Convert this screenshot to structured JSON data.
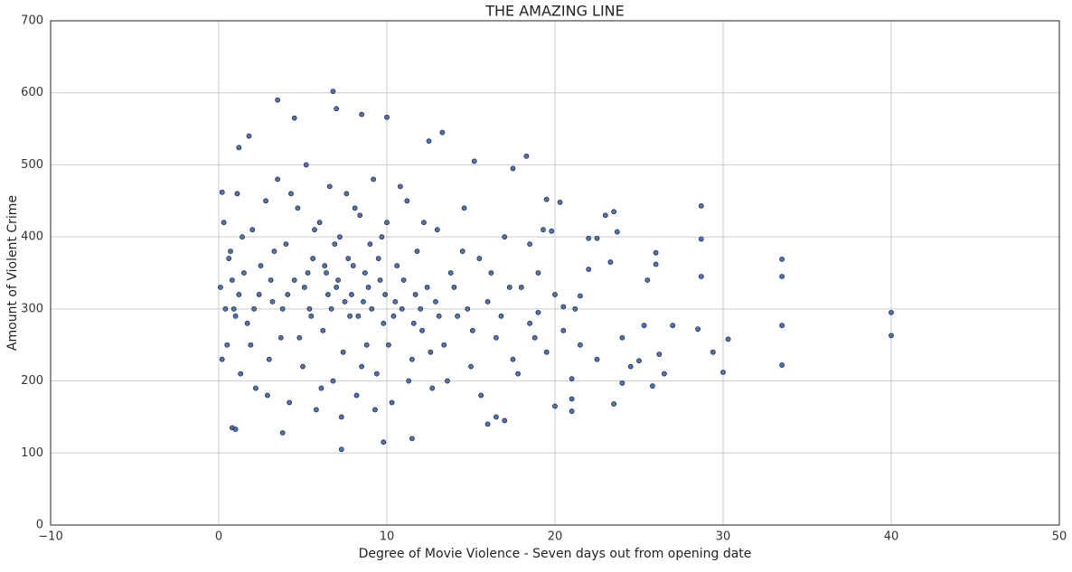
{
  "chart_data": {
    "type": "scatter",
    "title": "THE AMAZING LINE",
    "x_label": "Degree of Movie Violence - Seven days out from opening date",
    "y_label": "Amount of Violent Crime",
    "color": "#4c72b0",
    "edge_color": "#1a1a2e",
    "grid": true,
    "xlim": [
      -10,
      50
    ],
    "ylim": [
      0,
      700
    ],
    "xticks": [
      {
        "value": -10,
        "label": "−10"
      },
      0,
      10,
      20,
      30,
      40,
      50
    ],
    "yticks": [
      0,
      100,
      200,
      300,
      400,
      500,
      600,
      700
    ],
    "x": [
      0.1,
      0.3,
      0.5,
      0.7,
      0.9,
      1.1,
      1.3,
      1.5,
      1.7,
      2.0,
      2.2,
      2.5,
      2.8,
      3.0,
      3.2,
      3.5,
      3.7,
      4.0,
      4.2,
      4.5,
      4.7,
      5.0,
      5.2,
      5.4,
      5.6,
      5.8,
      6.0,
      6.2,
      6.4,
      6.6,
      6.8,
      7.0,
      7.2,
      7.4,
      7.6,
      7.8,
      8.0,
      8.2,
      8.4,
      8.6,
      8.8,
      9.0,
      9.2,
      9.4,
      9.6,
      9.8,
      10.0,
      10.3,
      10.6,
      10.9,
      11.2,
      11.5,
      11.8,
      12.1,
      12.4,
      12.7,
      13.0,
      13.4,
      13.8,
      14.2,
      14.6,
      15.0,
      15.5,
      16.0,
      16.5,
      17.0,
      17.5,
      18.0,
      18.5,
      19.0,
      19.5,
      20.0,
      0.2,
      0.6,
      1.0,
      1.4,
      1.9,
      2.4,
      2.9,
      3.3,
      3.8,
      4.3,
      4.8,
      5.3,
      5.7,
      6.1,
      6.5,
      6.9,
      7.3,
      7.7,
      8.1,
      8.5,
      8.9,
      9.3,
      9.7,
      10.1,
      10.5,
      10.8,
      11.3,
      11.7,
      12.2,
      12.6,
      13.1,
      13.6,
      14.0,
      14.5,
      15.1,
      15.6,
      16.2,
      16.8,
      17.3,
      17.8,
      18.8,
      19.3,
      20.5,
      21.5,
      22.5,
      0.4,
      0.8,
      1.2,
      2.1,
      3.1,
      4.1,
      5.1,
      5.5,
      6.3,
      6.7,
      7.1,
      7.5,
      7.9,
      8.3,
      8.7,
      9.1,
      9.5,
      9.9,
      10.4,
      11.0,
      11.6,
      12.0,
      12.9,
      14.8,
      40,
      40,
      33.5,
      33.5,
      33.5,
      33.5,
      28.7,
      28.7,
      28.7,
      28.5,
      30,
      30.3,
      29.4,
      27,
      26,
      26,
      25.5,
      26.2,
      26.5,
      25.8,
      25.3,
      25,
      24.5,
      24,
      24,
      23.5,
      23.7,
      23.5,
      23,
      23.3,
      22.5,
      22,
      22,
      21.5,
      21.2,
      21,
      21,
      21,
      20.5,
      20.3,
      20,
      19.8,
      19.5,
      19,
      18.5,
      18.3,
      17.5,
      17,
      16.5,
      16,
      15.2,
      13.3,
      12.5,
      11.5,
      10,
      9.8,
      8.5,
      7.3,
      6.8,
      7,
      3.5,
      4.5,
      3.8,
      0.8,
      1,
      1.2,
      1.8,
      0.2
    ],
    "y": [
      330,
      420,
      250,
      380,
      300,
      460,
      210,
      350,
      280,
      410,
      190,
      360,
      450,
      230,
      310,
      480,
      260,
      390,
      170,
      340,
      440,
      220,
      500,
      300,
      370,
      160,
      420,
      270,
      350,
      470,
      200,
      330,
      400,
      240,
      460,
      290,
      360,
      180,
      430,
      310,
      250,
      390,
      480,
      210,
      340,
      280,
      420,
      170,
      360,
      300,
      450,
      230,
      380,
      270,
      330,
      190,
      410,
      250,
      350,
      290,
      440,
      220,
      370,
      310,
      260,
      400,
      230,
      330,
      280,
      350,
      240,
      320,
      230,
      370,
      290,
      400,
      250,
      320,
      180,
      380,
      300,
      460,
      260,
      350,
      410,
      190,
      320,
      390,
      150,
      370,
      440,
      220,
      330,
      160,
      400,
      250,
      310,
      470,
      200,
      320,
      420,
      240,
      290,
      200,
      330,
      380,
      270,
      180,
      350,
      290,
      330,
      210,
      260,
      410,
      270,
      250,
      230,
      300,
      340,
      320,
      300,
      340,
      320,
      330,
      290,
      360,
      300,
      340,
      310,
      320,
      290,
      350,
      300,
      370,
      320,
      290,
      340,
      280,
      300,
      310,
      300,
      295,
      263,
      369,
      345,
      277,
      222,
      443,
      397,
      345,
      272,
      212,
      258,
      240,
      277,
      378,
      362,
      340,
      237,
      210,
      193,
      277,
      228,
      220,
      197,
      260,
      435,
      407,
      168,
      430,
      365,
      398,
      398,
      355,
      318,
      300,
      203,
      175,
      158,
      303,
      448,
      165,
      408,
      452,
      295,
      390,
      512,
      495,
      145,
      150,
      140,
      505,
      545,
      533,
      120,
      566,
      115,
      570,
      105,
      602,
      578,
      590,
      565,
      128,
      135,
      133,
      524,
      540,
      462
    ]
  }
}
